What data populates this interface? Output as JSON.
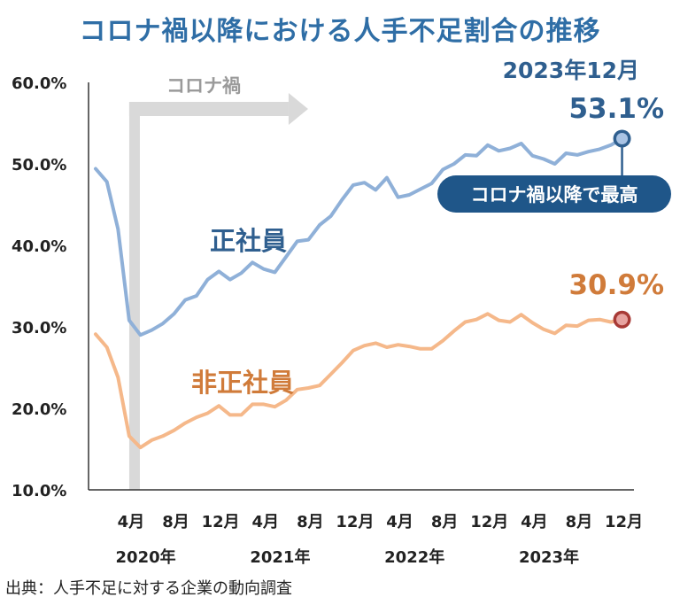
{
  "chart_data": {
    "type": "line",
    "title": "コロナ禍以降における人手不足割合の推移",
    "ylim": [
      10,
      60
    ],
    "y_ticks": [
      "60.0%",
      "50.0%",
      "40.0%",
      "30.0%",
      "20.0%",
      "10.0%"
    ],
    "y_tick_values": [
      60,
      50,
      40,
      30,
      20,
      10
    ],
    "x_month_labels": [
      "4月",
      "8月",
      "12月",
      "4月",
      "8月",
      "12月",
      "4月",
      "8月",
      "12月",
      "4月",
      "8月",
      "12月"
    ],
    "x_month_index": [
      3,
      7,
      11,
      15,
      19,
      23,
      27,
      31,
      35,
      39,
      43,
      47
    ],
    "x_year_labels": [
      "2020年",
      "2021年",
      "2022年",
      "2023年"
    ],
    "x_year_index": [
      4,
      16,
      28,
      40
    ],
    "x_start_index": 0,
    "x_end_index": 47,
    "corona_period_label": "コロナ禍",
    "corona_start_index": 3,
    "series": [
      {
        "name": "正社員",
        "color": "#8fb0d8",
        "label_color": "#2f5f8f",
        "values": [
          49.4,
          47.8,
          42.0,
          30.8,
          29.0,
          29.6,
          30.4,
          31.6,
          33.3,
          33.8,
          35.8,
          36.8,
          35.8,
          36.6,
          37.9,
          37.1,
          36.7,
          38.6,
          40.5,
          40.7,
          42.5,
          43.6,
          45.6,
          47.4,
          47.7,
          46.8,
          48.3,
          45.9,
          46.2,
          46.9,
          47.6,
          49.3,
          50.0,
          51.1,
          51.0,
          52.3,
          51.6,
          51.9,
          52.5,
          51.0,
          50.6,
          50.0,
          51.3,
          51.1,
          51.5,
          51.8,
          52.3,
          53.1
        ]
      },
      {
        "name": "非正社員",
        "color": "#f5b88a",
        "label_color": "#d07b3a",
        "values": [
          29.1,
          27.5,
          23.8,
          16.6,
          15.2,
          16.1,
          16.6,
          17.3,
          18.2,
          18.9,
          19.4,
          20.3,
          19.2,
          19.2,
          20.5,
          20.5,
          20.2,
          21.0,
          22.3,
          22.5,
          22.8,
          24.2,
          25.6,
          27.1,
          27.7,
          28.0,
          27.5,
          27.8,
          27.6,
          27.3,
          27.3,
          28.3,
          29.5,
          30.6,
          30.9,
          31.6,
          30.8,
          30.6,
          31.5,
          30.5,
          29.7,
          29.2,
          30.2,
          30.1,
          30.8,
          30.9,
          30.6,
          30.9
        ]
      }
    ],
    "annotations": {
      "end_date": "2023年12月",
      "regular_end_value": "53.1%",
      "nonregular_end_value": "30.9%",
      "record_note": "コロナ禍以降で最高"
    }
  },
  "source": "出典：人手不足に対する企業の動向調査"
}
